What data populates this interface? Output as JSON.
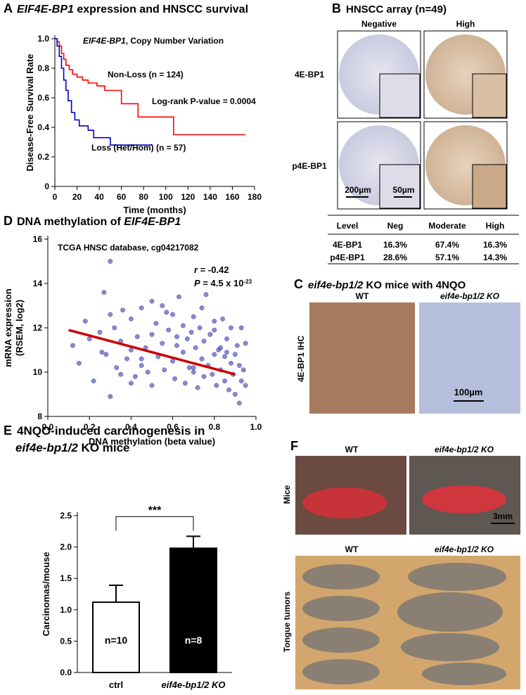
{
  "chart_data": [
    {
      "type": "step",
      "panel_label": "A",
      "title": [
        {
          "text": "EIF4E-BP1",
          "italic": true
        },
        {
          "text": " expression and HNSCC survival"
        }
      ],
      "subtitle": [
        {
          "text": "EIF4E-BP1",
          "italic": true
        },
        {
          "text": ", Copy Number Variation"
        }
      ],
      "annotations": [
        "Log-rank P-value = 0.0004"
      ],
      "x_label": "Time (months)",
      "y_label": "Disease-Free Survival Rate",
      "xlim": [
        0,
        180
      ],
      "xticks": [
        0,
        20,
        40,
        60,
        80,
        100,
        120,
        140,
        160,
        180
      ],
      "ylim": [
        0,
        1
      ],
      "yticks": [
        0,
        0.2,
        0.4,
        0.6,
        0.8,
        {
          "value": 1,
          "label": "1.0"
        }
      ],
      "series": [
        {
          "name": "Non-Loss (n = 124)",
          "color": "#ff0000",
          "x": [
            0,
            2,
            4,
            6,
            8,
            10,
            13,
            16,
            20,
            25,
            30,
            38,
            45,
            60,
            75,
            107,
            172
          ],
          "values": [
            1,
            0.98,
            0.95,
            0.9,
            0.86,
            0.82,
            0.79,
            0.76,
            0.74,
            0.72,
            0.7,
            0.68,
            0.65,
            0.56,
            0.47,
            0.35,
            0.35
          ]
        },
        {
          "name": "Loss (Het/Hom) (n = 57)",
          "color": "#0000cc",
          "x": [
            0,
            2,
            4,
            6,
            8,
            10,
            12,
            15,
            18,
            22,
            30,
            35,
            50,
            88
          ],
          "values": [
            1,
            0.95,
            0.88,
            0.8,
            0.72,
            0.65,
            0.58,
            0.5,
            0.45,
            0.41,
            0.38,
            0.33,
            0.28,
            0.28
          ]
        }
      ]
    },
    {
      "type": "scatter",
      "panel_label": "D",
      "title": [
        {
          "text": "DNA methylation of "
        },
        {
          "text": "EIF4E-BP1",
          "italic": true
        }
      ],
      "annotations": [
        "TCGA HNSC database, cg04217082"
      ],
      "stats": [
        [
          {
            "text": "r",
            "italic": true
          },
          {
            "text": " = -0.42"
          }
        ],
        [
          {
            "text": "P",
            "italic": true
          },
          {
            "text": " = 4.5 x 10"
          },
          {
            "text": "-23",
            "sup": true
          }
        ]
      ],
      "x_label": "DNA methylation (beta value)",
      "y_label": [
        "mRNA expression",
        "(RSEM, log2)"
      ],
      "xlim": [
        0,
        1
      ],
      "xticks": [
        {
          "value": 0,
          "label": "0.0"
        },
        0.2,
        0.4,
        0.6,
        0.8,
        {
          "value": 1,
          "label": "1.0"
        }
      ],
      "ylim": [
        8,
        16
      ],
      "yticks": [
        8,
        10,
        12,
        14,
        16
      ],
      "color": "#3a3aa8",
      "trend_color": "#cc0000",
      "trendline": {
        "x": [
          0.1,
          0.9
        ],
        "values": [
          11.9,
          9.9
        ]
      },
      "x": [
        0.12,
        0.15,
        0.18,
        0.2,
        0.22,
        0.25,
        0.27,
        0.28,
        0.3,
        0.3,
        0.32,
        0.33,
        0.35,
        0.36,
        0.38,
        0.4,
        0.4,
        0.42,
        0.43,
        0.45,
        0.45,
        0.47,
        0.48,
        0.5,
        0.5,
        0.52,
        0.53,
        0.55,
        0.55,
        0.56,
        0.58,
        0.6,
        0.6,
        0.61,
        0.62,
        0.63,
        0.65,
        0.65,
        0.66,
        0.67,
        0.68,
        0.7,
        0.7,
        0.71,
        0.72,
        0.73,
        0.74,
        0.75,
        0.75,
        0.76,
        0.77,
        0.78,
        0.79,
        0.8,
        0.8,
        0.81,
        0.82,
        0.83,
        0.84,
        0.85,
        0.85,
        0.86,
        0.87,
        0.88,
        0.88,
        0.89,
        0.9,
        0.9,
        0.91,
        0.92,
        0.93,
        0.93,
        0.94,
        0.95,
        0.95,
        0.3,
        0.26,
        0.57,
        0.69,
        0.83,
        0.4,
        0.5,
        0.62,
        0.74,
        0.86,
        0.92,
        0.35,
        0.45,
        0.7,
        0.8
      ],
      "values": [
        11.2,
        10.4,
        12.3,
        11.5,
        9.6,
        11.8,
        13.6,
        10.8,
        15.0,
        8.9,
        12.0,
        10.2,
        11.4,
        12.8,
        10.6,
        11.0,
        12.4,
        9.8,
        11.6,
        10.3,
        12.9,
        11.1,
        10.0,
        11.7,
        9.4,
        12.2,
        10.7,
        11.3,
        13.0,
        10.1,
        11.9,
        10.5,
        12.6,
        9.7,
        11.2,
        13.4,
        10.9,
        12.1,
        9.5,
        11.5,
        10.2,
        12.5,
        10.0,
        11.1,
        9.3,
        12.0,
        10.6,
        11.4,
        9.8,
        13.5,
        10.3,
        11.7,
        9.9,
        12.3,
        10.8,
        9.4,
        11.0,
        10.1,
        12.4,
        9.6,
        10.7,
        11.5,
        9.2,
        10.4,
        12.0,
        9.9,
        10.8,
        9.0,
        11.2,
        10.3,
        9.6,
        12.0,
        10.1,
        9.4,
        11.3,
        12.6,
        10.9,
        12.7,
        11.8,
        11.1,
        9.5,
        13.2,
        11.6,
        12.9,
        10.9,
        8.6,
        9.9,
        10.6,
        10.2,
        11.9
      ]
    },
    {
      "type": "bar",
      "panel_label": "E",
      "title": [
        [
          {
            "text": "4NQO-induced carcinogenesis in"
          }
        ],
        [
          {
            "text": "eif4e-bp1/2",
            "italic": true
          },
          {
            "text": " KO mice"
          }
        ]
      ],
      "y_label": "Carcinomas/mouse",
      "categories": [
        "ctrl",
        "eif4e-bp1/2 KO"
      ],
      "values": [
        1.12,
        1.98
      ],
      "errors": [
        0.27,
        0.19
      ],
      "bar_labels": [
        "n=10",
        "n=8"
      ],
      "colors": [
        "#ffffff",
        "#000000"
      ],
      "significance": "***",
      "ylim": [
        0,
        2.5
      ],
      "yticks": [
        {
          "value": 0,
          "label": "0.0"
        },
        0.5,
        {
          "value": 1,
          "label": "1.0"
        },
        1.5,
        {
          "value": 2,
          "label": "2.0"
        },
        2.5
      ]
    }
  ],
  "panel_b": {
    "label": "B",
    "title": "HNSCC array (n=49)",
    "columns": [
      "Negative",
      "High"
    ],
    "rows": [
      "4E-BP1",
      "p4E-BP1"
    ],
    "scale_bars": [
      "200µm",
      "50µm"
    ],
    "table": {
      "header": [
        "Level",
        "Neg",
        "Moderate",
        "High"
      ],
      "rows": [
        [
          "4E-BP1",
          "16.3%",
          "67.4%",
          "16.3%"
        ],
        [
          "p4E-BP1",
          "28.6%",
          "57.1%",
          "14.3%"
        ]
      ]
    }
  },
  "panel_c": {
    "label": "C",
    "title": [
      {
        "text": "eif4e-bp1/2",
        "italic": true
      },
      {
        "text": " KO mice with 4NQO"
      }
    ],
    "columns": [
      "WT",
      "eif4e-bp1/2 KO"
    ],
    "row": "4E-BP1 IHC",
    "scale_bar": "100µm"
  },
  "panel_f": {
    "label": "F",
    "columns": [
      "WT",
      "eif4e-bp1/2 KO"
    ],
    "rows": [
      "Mice",
      "Tongue tumors"
    ],
    "scale_bar": "3mm"
  }
}
